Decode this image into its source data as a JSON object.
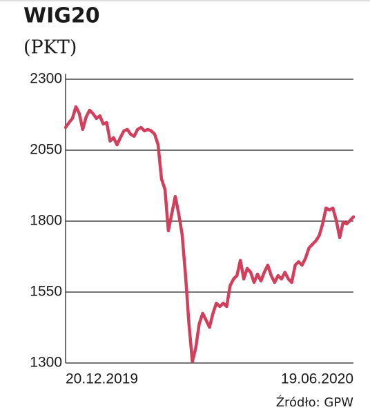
{
  "chart_data": {
    "type": "line",
    "title": "WIG20",
    "subtitle": "(PKT)",
    "source": "Źródło: GPW",
    "color": "#d13f5c",
    "grid": true,
    "ylim": [
      1300,
      2300
    ],
    "yticks": [
      1300,
      1550,
      1800,
      2050,
      2300
    ],
    "categories": [
      "20.12.2019",
      null,
      null,
      null,
      null,
      null,
      null,
      null,
      null,
      null,
      null,
      null,
      null,
      null,
      null,
      null,
      null,
      null,
      null,
      null,
      null,
      null,
      null,
      null,
      null,
      null,
      null,
      null,
      null,
      null,
      null,
      null,
      null,
      null,
      null,
      null,
      null,
      null,
      null,
      null,
      null,
      null,
      null,
      null,
      null,
      null,
      null,
      null,
      null,
      null,
      null,
      null,
      null,
      null,
      null,
      null,
      null,
      null,
      null,
      null,
      null,
      null,
      null,
      null,
      null,
      null,
      null,
      null,
      null,
      null,
      null,
      null,
      null,
      null,
      null,
      null,
      null,
      null,
      null,
      null,
      null,
      null,
      null,
      null,
      "19.06.2020"
    ],
    "values": [
      2130,
      2147,
      2162,
      2203,
      2179,
      2123,
      2167,
      2191,
      2179,
      2162,
      2171,
      2142,
      2147,
      2082,
      2094,
      2069,
      2094,
      2118,
      2123,
      2106,
      2099,
      2123,
      2130,
      2118,
      2123,
      2118,
      2106,
      2069,
      1948,
      1912,
      1766,
      1827,
      1887,
      1827,
      1754,
      1608,
      1438,
      1305,
      1354,
      1438,
      1475,
      1451,
      1426,
      1475,
      1511,
      1499,
      1511,
      1499,
      1572,
      1596,
      1608,
      1662,
      1596,
      1633,
      1620,
      1584,
      1613,
      1589,
      1620,
      1645,
      1608,
      1584,
      1608,
      1596,
      1620,
      1596,
      1584,
      1645,
      1657,
      1645,
      1669,
      1705,
      1718,
      1730,
      1749,
      1790,
      1846,
      1839,
      1846,
      1802,
      1742,
      1797,
      1790,
      1802,
      1815
    ]
  }
}
